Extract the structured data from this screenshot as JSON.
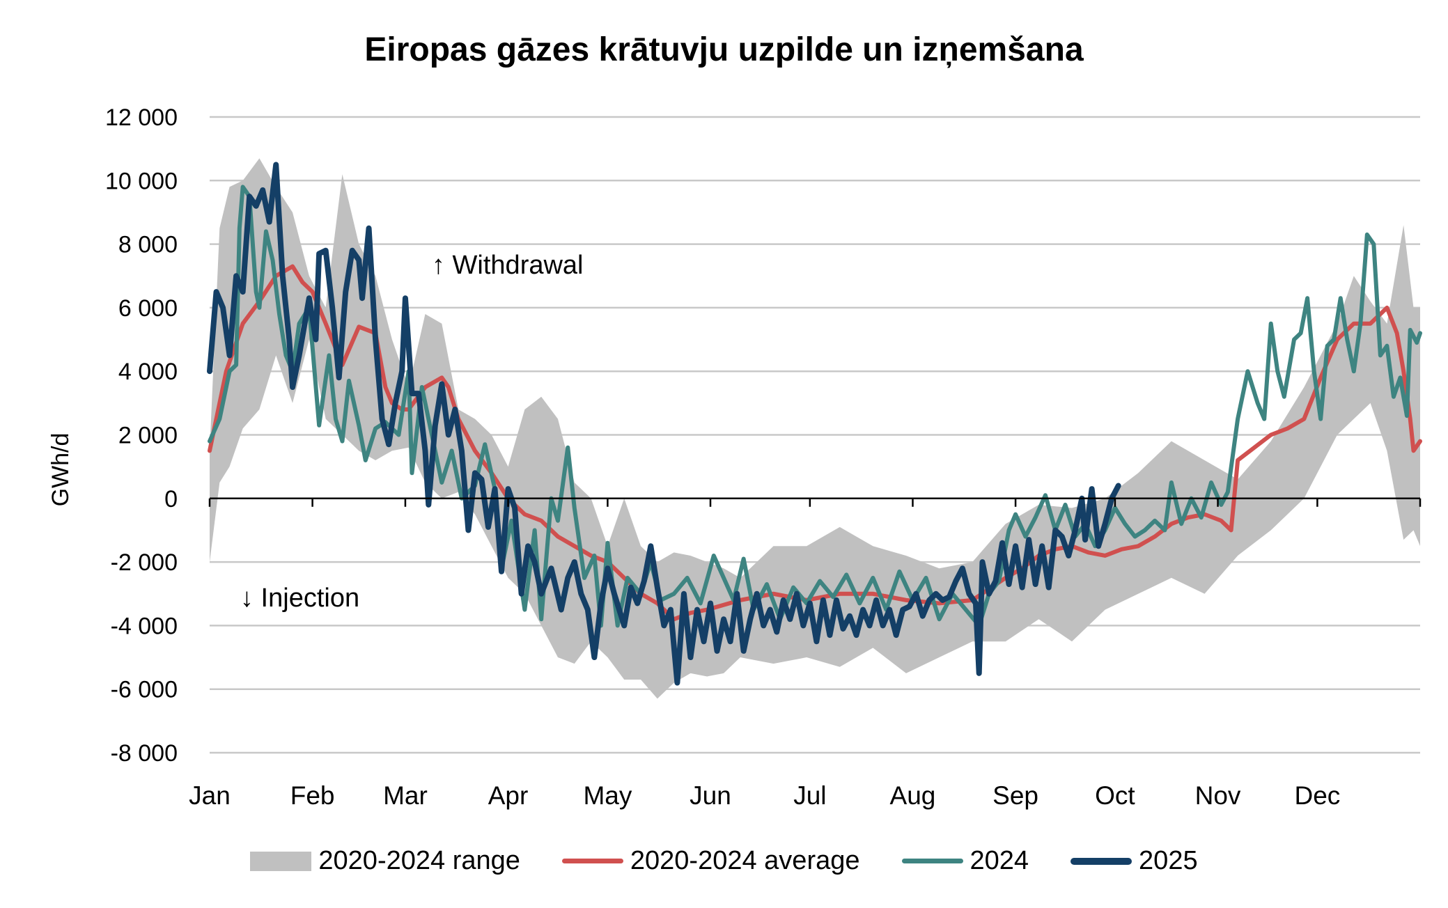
{
  "chart_data": {
    "type": "line",
    "title": "Eiropas gāzes krātuvju uzpilde un izņemšana",
    "ylabel": "GWh/d",
    "xlabel": "",
    "ylim": [
      -8000,
      12000
    ],
    "yticks": [
      12000,
      10000,
      8000,
      6000,
      4000,
      2000,
      0,
      -2000,
      -4000,
      -6000,
      -8000
    ],
    "ytick_labels": [
      "12 000",
      "10 000",
      "8 000",
      "6 000",
      "4 000",
      "2 000",
      "0",
      "-2 000",
      "-4 000",
      "-6 000",
      "-8 000"
    ],
    "xlim_day_of_year": [
      0,
      365
    ],
    "categories": [
      "Jan",
      "Feb",
      "Mar",
      "Apr",
      "May",
      "Jun",
      "Jul",
      "Aug",
      "Sep",
      "Oct",
      "Nov",
      "Dec"
    ],
    "month_start_days": [
      0,
      31,
      59,
      90,
      120,
      151,
      181,
      212,
      243,
      273,
      304,
      334
    ],
    "grid": "horizontal",
    "legend_position": "bottom",
    "annotations": [
      "↑ Withdrawal",
      "↓ Injection"
    ],
    "series": [
      {
        "name": "2020-2024 range",
        "kind": "band",
        "color": "#c0c0c0",
        "x": [
          0,
          3,
          6,
          10,
          15,
          20,
          25,
          30,
          35,
          40,
          45,
          50,
          55,
          60,
          65,
          70,
          75,
          80,
          85,
          90,
          95,
          100,
          105,
          110,
          115,
          120,
          125,
          130,
          135,
          140,
          145,
          150,
          155,
          160,
          170,
          180,
          190,
          200,
          210,
          220,
          230,
          240,
          250,
          260,
          270,
          280,
          290,
          300,
          310,
          320,
          330,
          340,
          345,
          350,
          355,
          360,
          363,
          365
        ],
        "max": [
          1500,
          8500,
          9800,
          10000,
          10700,
          9800,
          9000,
          7000,
          6000,
          10200,
          8000,
          7000,
          5000,
          3500,
          5800,
          5500,
          2800,
          2500,
          2000,
          1000,
          2800,
          3200,
          2500,
          500,
          0,
          -1500,
          0,
          -1500,
          -2000,
          -1700,
          -1800,
          -2000,
          -2200,
          -2500,
          -1500,
          -1500,
          -900,
          -1500,
          -1800,
          -2200,
          -2000,
          -800,
          -200,
          -300,
          0,
          800,
          1800,
          1200,
          600,
          1800,
          3500,
          5500,
          7000,
          6200,
          5500,
          8600,
          6000,
          6000
        ],
        "min": [
          -2000,
          500,
          1000,
          2200,
          2800,
          4500,
          3000,
          5000,
          2500,
          2000,
          1500,
          1200,
          1500,
          1600,
          500,
          0,
          200,
          -500,
          -1500,
          -2500,
          -3000,
          -4000,
          -5000,
          -5200,
          -4500,
          -5000,
          -5700,
          -5700,
          -6300,
          -5800,
          -5500,
          -5600,
          -5500,
          -5000,
          -5200,
          -5000,
          -5300,
          -4700,
          -5500,
          -5000,
          -4500,
          -4500,
          -3800,
          -4500,
          -3500,
          -3000,
          -2500,
          -3000,
          -1800,
          -1000,
          0,
          2000,
          2500,
          3000,
          1500,
          -1300,
          -1000,
          -1500
        ]
      },
      {
        "name": "2020-2024 average",
        "color": "#d0504f",
        "x": [
          0,
          5,
          10,
          15,
          20,
          25,
          28,
          31,
          35,
          40,
          45,
          50,
          53,
          55,
          58,
          60,
          65,
          70,
          72,
          75,
          80,
          85,
          90,
          95,
          100,
          105,
          110,
          115,
          120,
          125,
          130,
          135,
          140,
          145,
          150,
          160,
          170,
          180,
          190,
          200,
          210,
          220,
          230,
          240,
          245,
          250,
          255,
          260,
          265,
          270,
          275,
          280,
          285,
          290,
          295,
          300,
          305,
          308,
          310,
          315,
          320,
          325,
          330,
          335,
          340,
          345,
          350,
          355,
          358,
          360,
          362,
          363,
          365
        ],
        "y": [
          1500,
          4000,
          5500,
          6200,
          7000,
          7300,
          6800,
          6500,
          5500,
          4200,
          5400,
          5200,
          3500,
          3000,
          2800,
          2800,
          3500,
          3800,
          3500,
          2500,
          1500,
          800,
          0,
          -500,
          -700,
          -1200,
          -1500,
          -1800,
          -2000,
          -2500,
          -3000,
          -3300,
          -3800,
          -3600,
          -3500,
          -3200,
          -3000,
          -3200,
          -3000,
          -3000,
          -3200,
          -3300,
          -3200,
          -2500,
          -2200,
          -1800,
          -1600,
          -1500,
          -1700,
          -1800,
          -1600,
          -1500,
          -1200,
          -800,
          -600,
          -500,
          -700,
          -1000,
          1200,
          1600,
          2000,
          2200,
          2500,
          3800,
          5000,
          5500,
          5500,
          6000,
          5200,
          4000,
          2500,
          1500,
          1800
        ]
      },
      {
        "name": "2024",
        "color": "#3e8481",
        "x": [
          0,
          3,
          6,
          8,
          9,
          10,
          12,
          14,
          15,
          17,
          19,
          21,
          23,
          25,
          27,
          30,
          33,
          36,
          38,
          40,
          42,
          45,
          47,
          50,
          53,
          57,
          60,
          61,
          64,
          67,
          70,
          73,
          76,
          80,
          83,
          86,
          88,
          91,
          95,
          98,
          100,
          103,
          105,
          108,
          110,
          113,
          116,
          118,
          120,
          123,
          126,
          130,
          133,
          136,
          140,
          144,
          148,
          152,
          155,
          158,
          161,
          164,
          168,
          172,
          176,
          180,
          184,
          188,
          192,
          196,
          200,
          204,
          208,
          212,
          216,
          220,
          224,
          228,
          232,
          235,
          238,
          241,
          243,
          246,
          249,
          252,
          255,
          258,
          261,
          264,
          267,
          270,
          273,
          276,
          279,
          282,
          285,
          288,
          290,
          293,
          296,
          299,
          302,
          305,
          307,
          310,
          313,
          316,
          318,
          320,
          322,
          324,
          327,
          329,
          331,
          333,
          335,
          337,
          339,
          341,
          343,
          345,
          347,
          349,
          351,
          353,
          355,
          357,
          359,
          361,
          362,
          364,
          365
        ],
        "y": [
          1800,
          2500,
          4000,
          4200,
          8500,
          9800,
          9500,
          6500,
          6000,
          8400,
          7500,
          5800,
          4500,
          4000,
          5500,
          6000,
          2300,
          4500,
          2500,
          1800,
          3700,
          2300,
          1200,
          2200,
          2400,
          2000,
          4000,
          800,
          3500,
          2000,
          500,
          1500,
          0,
          400,
          1700,
          300,
          -2200,
          -700,
          -3500,
          -1000,
          -3800,
          0,
          -700,
          1600,
          -300,
          -2500,
          -1800,
          -4000,
          -1400,
          -4000,
          -2500,
          -3000,
          -2000,
          -3200,
          -3000,
          -2500,
          -3300,
          -1800,
          -2500,
          -3200,
          -1900,
          -3500,
          -2700,
          -3800,
          -2800,
          -3300,
          -2600,
          -3100,
          -2400,
          -3300,
          -2500,
          -3500,
          -2300,
          -3200,
          -2500,
          -3800,
          -3000,
          -3500,
          -4000,
          -3000,
          -2600,
          -1000,
          -500,
          -1200,
          -600,
          100,
          -1000,
          -200,
          -1200,
          -800,
          -1500,
          -1000,
          -300,
          -800,
          -1200,
          -1000,
          -700,
          -1000,
          500,
          -800,
          0,
          -600,
          500,
          -200,
          200,
          2500,
          4000,
          3000,
          2500,
          5500,
          4000,
          3200,
          5000,
          5200,
          6300,
          4000,
          2500,
          4800,
          5000,
          6300,
          5000,
          4000,
          5500,
          8300,
          8000,
          4500,
          4800,
          3200,
          3800,
          2600,
          5300,
          4900,
          5200
        ]
      },
      {
        "name": "2025",
        "color": "#143f66",
        "x": [
          0,
          2,
          4,
          6,
          8,
          10,
          12,
          14,
          16,
          18,
          20,
          22,
          24,
          25,
          27,
          30,
          32,
          33,
          35,
          37,
          39,
          41,
          43,
          45,
          46,
          48,
          50,
          52,
          54,
          56,
          58,
          59,
          61,
          63,
          65,
          66,
          68,
          70,
          72,
          74,
          76,
          78,
          80,
          82,
          84,
          86,
          88,
          90,
          92,
          94,
          96,
          98,
          100,
          103,
          106,
          108,
          110,
          112,
          114,
          116,
          118,
          120,
          122,
          125,
          127,
          129,
          131,
          133,
          135,
          137,
          139,
          141,
          143,
          145,
          147,
          149,
          151,
          153,
          155,
          157,
          159,
          161,
          163,
          165,
          167,
          169,
          171,
          173,
          175,
          177,
          179,
          181,
          183,
          185,
          187,
          189,
          191,
          193,
          195,
          197,
          199,
          201,
          203,
          205,
          207,
          209,
          211,
          213,
          215,
          217,
          219,
          221,
          223,
          225,
          227,
          229,
          231,
          232,
          233,
          235,
          237,
          239,
          241,
          243,
          245,
          247,
          249,
          251,
          253,
          255,
          257,
          259,
          261,
          263,
          264,
          266,
          268,
          270,
          272,
          274
        ],
        "y": [
          4000,
          6500,
          6000,
          4500,
          7000,
          6500,
          9500,
          9200,
          9700,
          8700,
          10500,
          7000,
          5000,
          3500,
          4500,
          6300,
          5000,
          7700,
          7800,
          6000,
          3800,
          6500,
          7800,
          7500,
          6300,
          8500,
          5000,
          2500,
          1700,
          3000,
          4000,
          6300,
          3300,
          3300,
          1500,
          -200,
          2300,
          3600,
          2000,
          2800,
          1500,
          -1000,
          800,
          600,
          -900,
          300,
          -2300,
          300,
          -300,
          -3000,
          -1500,
          -2000,
          -3000,
          -2200,
          -3500,
          -2500,
          -2000,
          -3000,
          -3500,
          -5000,
          -3300,
          -2200,
          -3000,
          -4000,
          -2800,
          -3300,
          -2600,
          -1500,
          -2800,
          -4000,
          -3500,
          -5800,
          -3000,
          -5000,
          -3500,
          -4500,
          -3300,
          -4800,
          -3800,
          -4500,
          -3000,
          -4800,
          -3800,
          -3000,
          -4000,
          -3500,
          -4200,
          -3200,
          -3800,
          -3000,
          -4000,
          -3300,
          -4500,
          -3200,
          -4300,
          -3200,
          -4100,
          -3700,
          -4300,
          -3500,
          -4000,
          -3200,
          -4000,
          -3500,
          -4300,
          -3500,
          -3400,
          -3000,
          -3700,
          -3200,
          -3000,
          -3200,
          -3100,
          -2600,
          -2200,
          -3000,
          -3300,
          -5500,
          -2000,
          -3000,
          -2600,
          -1400,
          -2700,
          -1500,
          -2800,
          -1300,
          -2700,
          -1500,
          -2800,
          -1000,
          -1200,
          -1800,
          -1000,
          0,
          -1300,
          300,
          -1500,
          -800,
          0,
          400
        ]
      }
    ]
  }
}
